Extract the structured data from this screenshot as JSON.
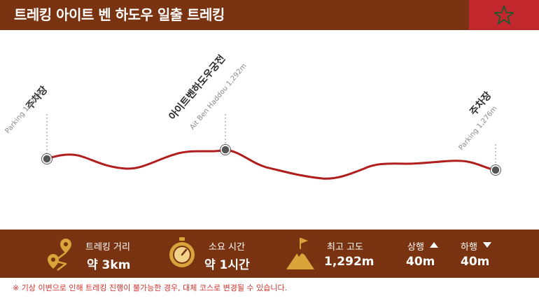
{
  "header": {
    "title": "트레킹 아이트 벤 하도우 일출 트레킹",
    "flag_colors": {
      "field": "#c1272d",
      "star": "#0b5d2a"
    }
  },
  "profile": {
    "line_color": "#b01e1e",
    "points": [
      {
        "name": "주차장",
        "sub": "Parking 1,276m"
      },
      {
        "name": "아이트벤하도우궁전",
        "sub": "Ait Ben Haddou 1,292m"
      },
      {
        "name": "주차장",
        "sub": "Parking 1,276m"
      }
    ]
  },
  "stats": {
    "distance": {
      "icon": "map-pin-route-icon",
      "label": "트레킹 거리",
      "value": "약 3km"
    },
    "duration": {
      "icon": "stopwatch-icon",
      "label": "소요 시간",
      "value": "약 1시간"
    },
    "altitude": {
      "icon": "mountain-flag-icon",
      "label": "최고 고도",
      "value": "1,292m"
    },
    "ascent": {
      "icon": "triangle-up-icon",
      "label": "상행",
      "value": "40m"
    },
    "descent": {
      "icon": "triangle-down-icon",
      "label": "하행",
      "value": "40m"
    }
  },
  "footer_note": "※ 기상 이변으로 인해 트레킹 진행이 불가능한 경우, 대체 코스로 변경될 수 있습니다."
}
